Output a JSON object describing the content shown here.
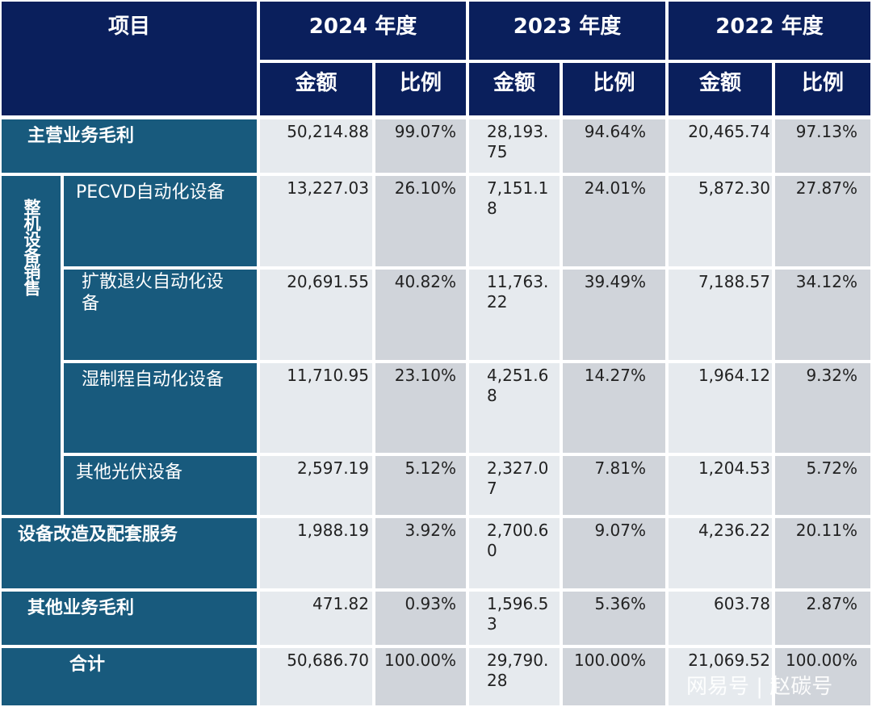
{
  "header": {
    "item": "项目",
    "years": [
      "2024 年度",
      "2023 年度",
      "2022 年度"
    ],
    "amount": "金额",
    "ratio": "比例"
  },
  "group_label": "整机设备销售",
  "rows": [
    {
      "label": "主营业务毛利",
      "v": [
        "50,214.88",
        "99.07%",
        "28,193.75",
        "94.64%",
        "20,465.74",
        "97.13%"
      ]
    },
    {
      "label": "PECVD自动化设备",
      "v": [
        "13,227.03",
        "26.10%",
        "7,151.18",
        "24.01%",
        "5,872.30",
        "27.87%"
      ]
    },
    {
      "label": "扩散退火自动化设备",
      "v": [
        "20,691.55",
        "40.82%",
        "11,763.22",
        "39.49%",
        "7,188.57",
        "34.12%"
      ]
    },
    {
      "label": "湿制程自动化设备",
      "v": [
        "11,710.95",
        "23.10%",
        "4,251.68",
        "14.27%",
        "1,964.12",
        "9.32%"
      ]
    },
    {
      "label": "其他光伏设备",
      "v": [
        "2,597.19",
        "5.12%",
        "2,327.07",
        "7.81%",
        "1,204.53",
        "5.72%"
      ]
    },
    {
      "label": "设备改造及配套服务",
      "v": [
        "1,988.19",
        "3.92%",
        "2,700.60",
        "9.07%",
        "4,236.22",
        "20.11%"
      ]
    },
    {
      "label": "其他业务毛利",
      "v": [
        "471.82",
        "0.93%",
        "1,596.53",
        "5.36%",
        "603.78",
        "2.87%"
      ]
    },
    {
      "label": "合计",
      "v": [
        "50,686.70",
        "100.00%",
        "29,790.28",
        "100.00%",
        "21,069.52",
        "100.00%"
      ]
    }
  ],
  "watermark": "网易号 | 赵碳号"
}
